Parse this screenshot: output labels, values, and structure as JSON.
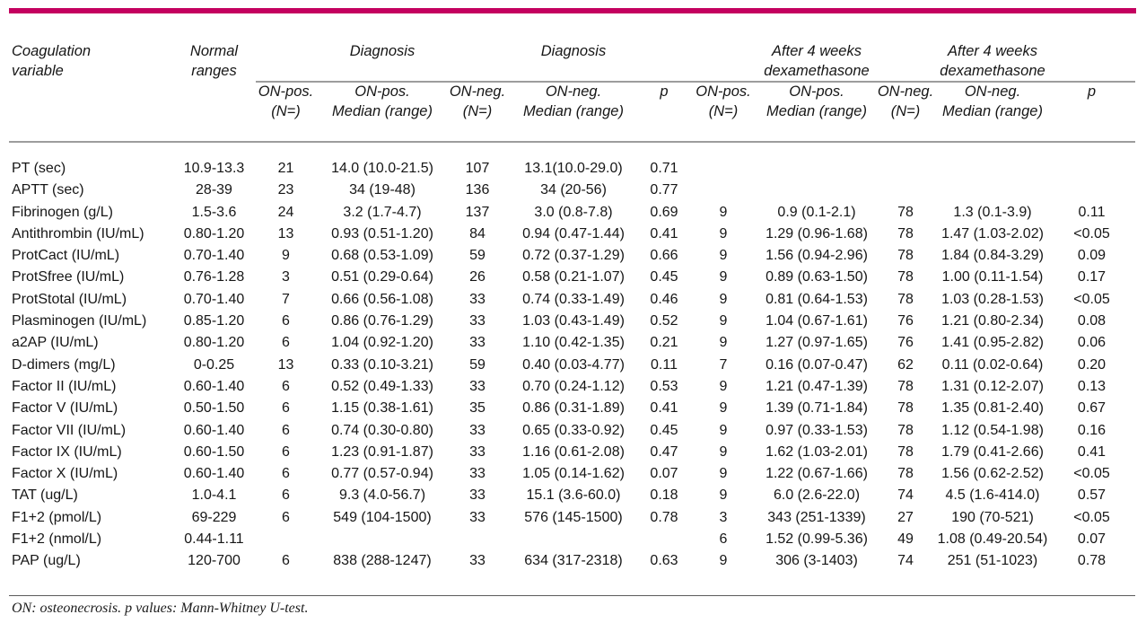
{
  "colors": {
    "accent": "#c4005f",
    "header_rule": "#9d9d9d",
    "foot_rule": "#5b5b5b"
  },
  "table": {
    "header": {
      "variable_line1": "Coagulation",
      "variable_line2": "variable",
      "normal_line1": "Normal",
      "normal_line2": "ranges",
      "group_diagnosis_1": "Diagnosis",
      "group_diagnosis_2": "Diagnosis",
      "group_dex1_line1": "After 4 weeks",
      "group_dex1_line2": "dexamethasone",
      "group_dex2_line1": "After 4 weeks",
      "group_dex2_line2": "dexamethasone"
    },
    "subheaders": [
      {
        "l1": "ON-pos.",
        "l2": "(N=)"
      },
      {
        "l1": "ON-pos.",
        "l2": "Median (range)"
      },
      {
        "l1": "ON-neg.",
        "l2": "(N=)"
      },
      {
        "l1": "ON-neg.",
        "l2": "Median (range)"
      },
      {
        "l1": "p",
        "l2": ""
      },
      {
        "l1": "ON-pos.",
        "l2": "(N=)"
      },
      {
        "l1": "ON-pos.",
        "l2": "Median (range)"
      },
      {
        "l1": "ON-neg.",
        "l2": "(N=)"
      },
      {
        "l1": "ON-neg.",
        "l2": "Median (range)"
      },
      {
        "l1": "p",
        "l2": ""
      }
    ],
    "rows": [
      [
        "PT (sec)",
        "10.9-13.3",
        "21",
        "14.0 (10.0-21.5)",
        "107",
        "13.1(10.0-29.0)",
        "0.71",
        "",
        "",
        "",
        "",
        ""
      ],
      [
        "APTT (sec)",
        "28-39",
        "23",
        "34 (19-48)",
        "136",
        "34 (20-56)",
        "0.77",
        "",
        "",
        "",
        "",
        ""
      ],
      [
        "Fibrinogen (g/L)",
        "1.5-3.6",
        "24",
        "3.2 (1.7-4.7)",
        "137",
        "3.0 (0.8-7.8)",
        "0.69",
        "9",
        "0.9 (0.1-2.1)",
        "78",
        "1.3 (0.1-3.9)",
        "0.11"
      ],
      [
        "Antithrombin (IU/mL)",
        "0.80-1.20",
        "13",
        "0.93 (0.51-1.20)",
        "84",
        "0.94 (0.47-1.44)",
        "0.41",
        "9",
        "1.29 (0.96-1.68)",
        "78",
        "1.47 (1.03-2.02)",
        "<0.05"
      ],
      [
        "ProtCact (IU/mL)",
        "0.70-1.40",
        "9",
        "0.68 (0.53-1.09)",
        "59",
        "0.72 (0.37-1.29)",
        "0.66",
        "9",
        "1.56 (0.94-2.96)",
        "78",
        "1.84 (0.84-3.29)",
        "0.09"
      ],
      [
        "ProtSfree (IU/mL)",
        "0.76-1.28",
        "3",
        "0.51 (0.29-0.64)",
        "26",
        "0.58 (0.21-1.07)",
        "0.45",
        "9",
        "0.89 (0.63-1.50)",
        "78",
        "1.00 (0.11-1.54)",
        "0.17"
      ],
      [
        "ProtStotal (IU/mL)",
        "0.70-1.40",
        "7",
        "0.66 (0.56-1.08)",
        "33",
        "0.74 (0.33-1.49)",
        "0.46",
        "9",
        "0.81 (0.64-1.53)",
        "78",
        "1.03 (0.28-1.53)",
        "<0.05"
      ],
      [
        "Plasminogen (IU/mL)",
        "0.85-1.20",
        "6",
        "0.86 (0.76-1.29)",
        "33",
        "1.03 (0.43-1.49)",
        "0.52",
        "9",
        "1.04 (0.67-1.61)",
        "76",
        "1.21 (0.80-2.34)",
        "0.08"
      ],
      [
        "a2AP (IU/mL)",
        "0.80-1.20",
        "6",
        "1.04 (0.92-1.20)",
        "33",
        "1.10 (0.42-1.35)",
        "0.21",
        "9",
        "1.27 (0.97-1.65)",
        "76",
        "1.41 (0.95-2.82)",
        "0.06"
      ],
      [
        "D-dimers (mg/L)",
        "0-0.25",
        "13",
        "0.33 (0.10-3.21)",
        "59",
        "0.40 (0.03-4.77)",
        "0.11",
        "7",
        "0.16 (0.07-0.47)",
        "62",
        "0.11 (0.02-0.64)",
        "0.20"
      ],
      [
        "Factor II (IU/mL)",
        "0.60-1.40",
        "6",
        "0.52 (0.49-1.33)",
        "33",
        "0.70 (0.24-1.12)",
        "0.53",
        "9",
        "1.21 (0.47-1.39)",
        "78",
        "1.31 (0.12-2.07)",
        "0.13"
      ],
      [
        "Factor V (IU/mL)",
        "0.50-1.50",
        "6",
        "1.15 (0.38-1.61)",
        "35",
        "0.86 (0.31-1.89)",
        "0.41",
        "9",
        "1.39 (0.71-1.84)",
        "78",
        "1.35 (0.81-2.40)",
        "0.67"
      ],
      [
        "Factor VII (IU/mL)",
        "0.60-1.40",
        "6",
        "0.74 (0.30-0.80)",
        "33",
        "0.65 (0.33-0.92)",
        "0.45",
        "9",
        "0.97 (0.33-1.53)",
        "78",
        "1.12 (0.54-1.98)",
        "0.16"
      ],
      [
        "Factor IX (IU/mL)",
        "0.60-1.50",
        "6",
        "1.23 (0.91-1.87)",
        "33",
        "1.16 (0.61-2.08)",
        "0.47",
        "9",
        "1.62 (1.03-2.01)",
        "78",
        "1.79 (0.41-2.66)",
        "0.41"
      ],
      [
        "Factor X (IU/mL)",
        "0.60-1.40",
        "6",
        "0.77 (0.57-0.94)",
        "33",
        "1.05 (0.14-1.62)",
        "0.07",
        "9",
        "1.22 (0.67-1.66)",
        "78",
        "1.56 (0.62-2.52)",
        "<0.05"
      ],
      [
        "TAT (ug/L)",
        "1.0-4.1",
        "6",
        "9.3 (4.0-56.7)",
        "33",
        "15.1 (3.6-60.0)",
        "0.18",
        "9",
        "6.0 (2.6-22.0)",
        "74",
        "4.5 (1.6-414.0)",
        "0.57"
      ],
      [
        "F1+2 (pmol/L)",
        "69-229",
        "6",
        "549 (104-1500)",
        "33",
        "576 (145-1500)",
        "0.78",
        "3",
        "343 (251-1339)",
        "27",
        "190 (70-521)",
        "<0.05"
      ],
      [
        "F1+2 (nmol/L)",
        "0.44-1.11",
        "",
        "",
        "",
        "",
        "",
        "6",
        "1.52 (0.99-5.36)",
        "49",
        "1.08 (0.49-20.54)",
        "0.07"
      ],
      [
        "PAP (ug/L)",
        "120-700",
        "6",
        "838 (288-1247)",
        "33",
        "634 (317-2318)",
        "0.63",
        "9",
        "306 (3-1403)",
        "74",
        "251 (51-1023)",
        "0.78"
      ]
    ]
  },
  "footnote": "ON: osteonecrosis. p values: Mann-Whitney U-test."
}
